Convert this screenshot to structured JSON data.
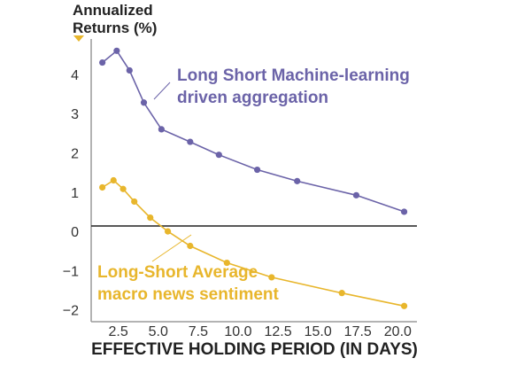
{
  "chart_data": {
    "type": "line",
    "ylabel_line1": "Annualized",
    "ylabel_line2": "Returns (%)",
    "xlabel": "EFFECTIVE HOLDING PERIOD (IN DAYS)",
    "xlim": [
      0.8,
      21.2
    ],
    "ylim": [
      -2.3,
      4.9
    ],
    "xticks": [
      2.5,
      5.0,
      7.5,
      10.0,
      12.5,
      15.0,
      17.5,
      20.0
    ],
    "xtick_labels": [
      "2.5",
      "5.0",
      "7.5",
      "10.0",
      "12.5",
      "15.0",
      "17.5",
      "20.0"
    ],
    "yticks": [
      4,
      3,
      2,
      1,
      0,
      -1,
      -2
    ],
    "ytick_labels": [
      "4",
      "3",
      "2",
      "1",
      "0",
      "−1",
      "−2"
    ],
    "grid": false,
    "colors": {
      "ml": "#6b63a8",
      "macro": "#e8b62c",
      "axis": "#222222",
      "spine": "#9a9a9a"
    },
    "series": [
      {
        "key": "ml",
        "name_line1": "Long Short Machine-learning",
        "name_line2": "driven aggregation",
        "x": [
          1.5,
          2.4,
          3.2,
          4.1,
          5.2,
          7.0,
          8.8,
          11.2,
          13.7,
          17.4,
          20.4
        ],
        "y": [
          4.3,
          4.6,
          4.1,
          3.28,
          2.6,
          2.28,
          1.95,
          1.57,
          1.28,
          0.92,
          0.5
        ]
      },
      {
        "key": "macro",
        "name_line1": "Long-Short Average",
        "name_line2": "macro news sentiment",
        "x": [
          1.5,
          2.2,
          2.8,
          3.5,
          4.5,
          5.6,
          7.0,
          9.3,
          12.1,
          16.5,
          20.4
        ],
        "y": [
          1.12,
          1.3,
          1.08,
          0.76,
          0.35,
          0.0,
          -0.37,
          -0.8,
          -1.17,
          -1.57,
          -1.9
        ]
      }
    ]
  }
}
